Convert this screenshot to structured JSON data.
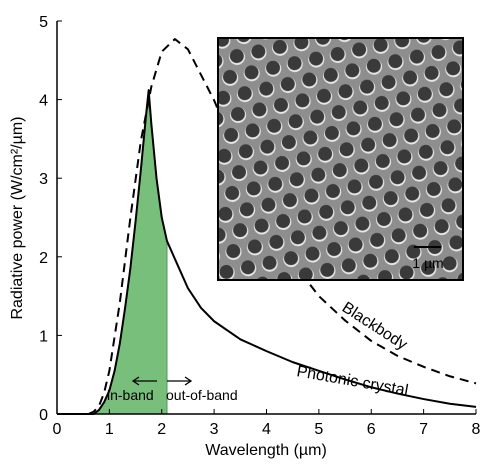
{
  "chart_data": {
    "type": "line",
    "x_label": "Wavelength (µm)",
    "y_label": "Radiative power (W/cm²/µm)",
    "xlim": [
      0,
      8
    ],
    "xticks": [
      0,
      1,
      2,
      3,
      4,
      5,
      6,
      7,
      8
    ],
    "ylim": [
      0,
      5
    ],
    "yticks": [
      0,
      1,
      2,
      3,
      4,
      5
    ],
    "series": [
      {
        "name": "Blackbody",
        "color": "#000000",
        "dash": true,
        "x": [
          0.6,
          0.7,
          0.8,
          0.9,
          1.0,
          1.2,
          1.4,
          1.6,
          1.8,
          2.0,
          2.25,
          2.5,
          3.0,
          3.5,
          4.0,
          4.5,
          5.0,
          5.5,
          6.0,
          6.5,
          7.0,
          7.5,
          8.0
        ],
        "values": [
          0,
          0.03,
          0.1,
          0.27,
          0.55,
          1.42,
          2.49,
          3.47,
          4.16,
          4.61,
          4.77,
          4.64,
          3.99,
          3.2,
          2.49,
          1.93,
          1.5,
          1.19,
          0.93,
          0.74,
          0.6,
          0.48,
          0.39
        ]
      },
      {
        "name": "Photonic crystal",
        "color": "#000000",
        "dash": false,
        "x": [
          0,
          0.7,
          0.8,
          0.9,
          1.0,
          1.1,
          1.2,
          1.3,
          1.4,
          1.5,
          1.6,
          1.7,
          1.75,
          1.8,
          1.9,
          2.0,
          2.1,
          2.3,
          2.5,
          2.75,
          3.0,
          3.5,
          4.0,
          4.5,
          5.0,
          5.5,
          6.0,
          6.5,
          7.0,
          7.5,
          8.0
        ],
        "values": [
          0,
          0,
          0.05,
          0.15,
          0.3,
          0.55,
          0.9,
          1.35,
          1.85,
          2.45,
          3.1,
          3.8,
          4.12,
          3.7,
          3.0,
          2.5,
          2.2,
          1.9,
          1.6,
          1.35,
          1.18,
          0.95,
          0.8,
          0.66,
          0.55,
          0.44,
          0.34,
          0.26,
          0.19,
          0.13,
          0.09
        ]
      }
    ],
    "shaded_region": {
      "x": [
        0,
        2.1
      ],
      "color": "#77bf7a"
    },
    "annotations": [
      "in-band",
      "out-of-band"
    ],
    "inset_scale_label": "1 µm"
  }
}
